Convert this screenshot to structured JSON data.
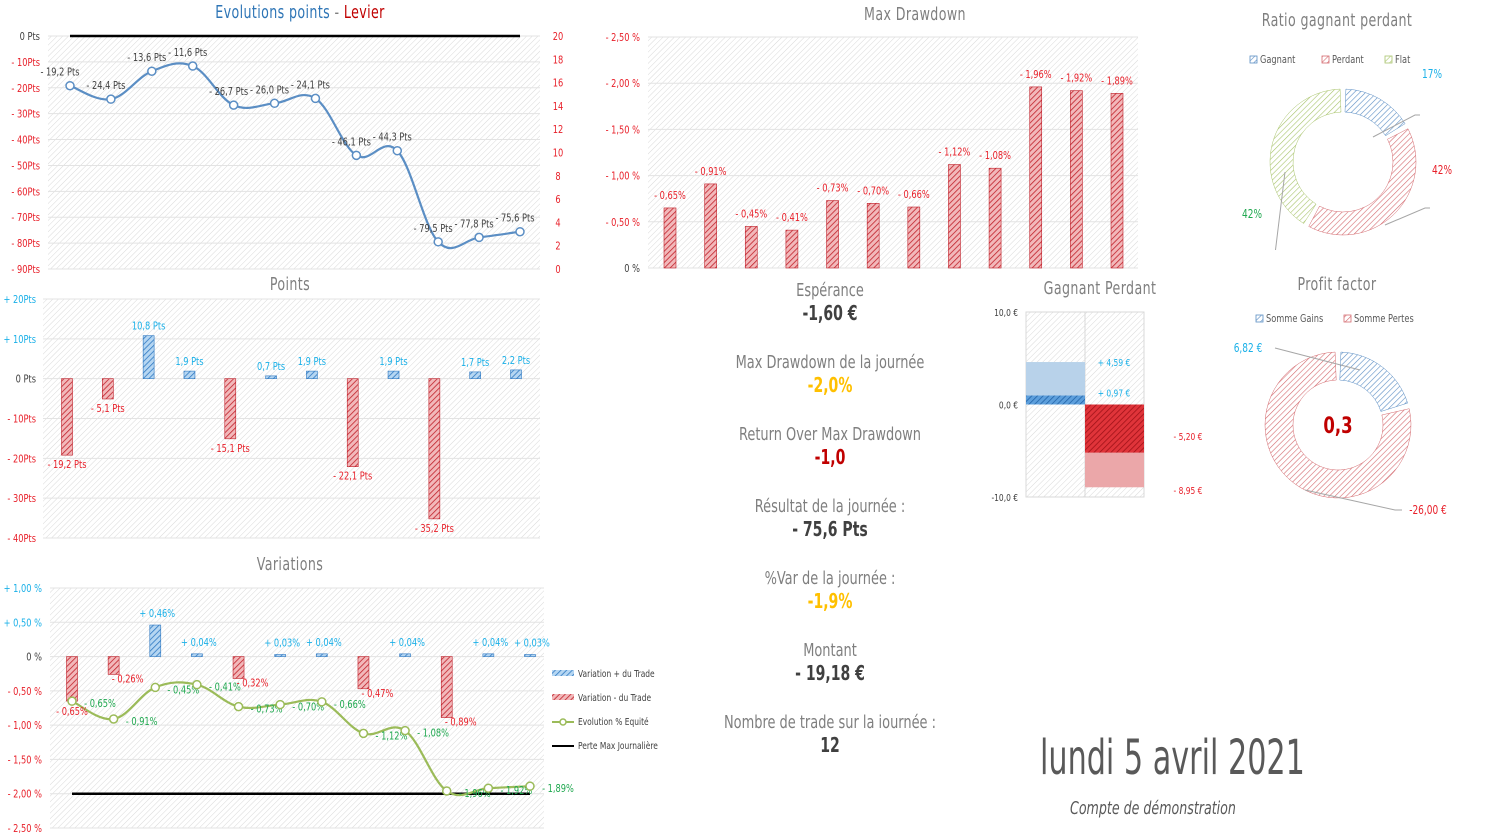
{
  "colors": {
    "blue": "#2e86c9",
    "blue_text": "#1ab0e8",
    "red": "#d9272e",
    "red_text": "#e8202a",
    "green_line": "#9bbb59",
    "green_text": "#1fa84f",
    "line_blue": "#5b8ec4",
    "grey_text": "#7f7f7f",
    "dark_text": "#404040",
    "yellow": "#ffc000",
    "dark_red": "#c00000"
  },
  "chart_data": [
    {
      "id": "evolution",
      "type": "line",
      "title_part1": "Evolutions points",
      "title_sep": " - ",
      "title_part2": "Levier",
      "ylim": [
        -90,
        0
      ],
      "y2lim": [
        0,
        20
      ],
      "yticks": [
        "0 Pts",
        "- 10Pts",
        "- 20Pts",
        "- 30Pts",
        "- 40Pts",
        "- 50Pts",
        "- 60Pts",
        "- 70Pts",
        "- 80Pts",
        "- 90Pts"
      ],
      "y2ticks": [
        "20",
        "18",
        "16",
        "14",
        "12",
        "10",
        "8",
        "6",
        "4",
        "2",
        "0"
      ],
      "values": [
        -19.2,
        -24.4,
        -13.6,
        -11.6,
        -26.7,
        -26.0,
        -24.1,
        -46.1,
        -44.3,
        -79.5,
        -77.8,
        -75.6
      ],
      "labels": [
        "- 19,2 Pts",
        "- 24,4 Pts",
        "- 13,6 Pts",
        "- 11,6 Pts",
        "- 26,7 Pts",
        "- 26,0 Pts",
        "- 24,1 Pts",
        "- 46,1 Pts",
        "- 44,3 Pts",
        "- 79,5 Pts",
        "- 77,8 Pts",
        "- 75,6 Pts"
      ],
      "reference_line": 0,
      "grid": true
    },
    {
      "id": "points",
      "type": "bar",
      "title": "Points",
      "ylim": [
        -40,
        20
      ],
      "yticks": [
        "+ 20Pts",
        "+ 10Pts",
        "0 Pts",
        "- 10Pts",
        "- 20Pts",
        "- 30Pts",
        "- 40Pts"
      ],
      "values": [
        -19.2,
        -5.1,
        10.8,
        1.9,
        -15.1,
        0.7,
        1.9,
        -22.1,
        1.9,
        -35.2,
        1.7,
        2.2
      ],
      "labels": [
        "- 19,2 Pts",
        "- 5,1 Pts",
        "10,8 Pts",
        "1,9 Pts",
        "- 15,1 Pts",
        "0,7 Pts",
        "1,9 Pts",
        "- 22,1 Pts",
        "1,9 Pts",
        "- 35,2 Pts",
        "1,7 Pts",
        "2,2 Pts"
      ],
      "grid": true
    },
    {
      "id": "variations",
      "type": "bar",
      "title": "Variations",
      "ylim": [
        -2.5,
        1.0
      ],
      "yticks": [
        "+ 1,00 %",
        "+ 0,50 %",
        "0 %",
        "- 0,50 %",
        "- 1,00 %",
        "- 1,50 %",
        "- 2,00 %",
        "- 2,50 %"
      ],
      "series": [
        {
          "name": "Variation + du Trade",
          "values": [
            null,
            null,
            0.46,
            0.04,
            null,
            0.03,
            0.04,
            null,
            0.04,
            null,
            0.04,
            0.03
          ],
          "labels": [
            "",
            "",
            "+ 0,46%",
            "+ 0,04%",
            "",
            "+ 0,03%",
            "+ 0,04%",
            "",
            "+ 0,04%",
            "",
            "+ 0,04%",
            "+ 0,03%"
          ]
        },
        {
          "name": "Variation - du Trade",
          "values": [
            -0.65,
            -0.26,
            null,
            null,
            -0.32,
            null,
            null,
            -0.47,
            null,
            -0.89,
            null,
            null
          ],
          "labels": [
            "- 0,65%",
            "- 0,26%",
            "",
            "",
            "- 0,32%",
            "",
            "",
            "- 0,47%",
            "",
            "- 0,89%",
            "",
            ""
          ]
        },
        {
          "name": "Evolution % Equité",
          "values": [
            -0.65,
            -0.91,
            -0.45,
            -0.41,
            -0.73,
            -0.7,
            -0.66,
            -1.12,
            -1.08,
            -1.96,
            -1.92,
            -1.89
          ],
          "labels": [
            "- 0,65%",
            "- 0,91%",
            "- 0,45%",
            "- 0,41%",
            "- 0,73%",
            "- 0,70%",
            "- 0,66%",
            "- 1,12%",
            "- 1,08%",
            "- 1,96%",
            "- 1,92%",
            "- 1,89%"
          ]
        },
        {
          "name": "Perte Max Journalière",
          "values": [
            -2.0,
            -2.0,
            -2.0,
            -2.0,
            -2.0,
            -2.0,
            -2.0,
            -2.0,
            -2.0,
            -2.0,
            -2.0,
            -2.0
          ]
        }
      ],
      "legend": "right",
      "grid": true
    },
    {
      "id": "max_drawdown",
      "type": "bar",
      "title": "Max Drawdown",
      "ylim": [
        0,
        -2.5
      ],
      "yticks": [
        "- 2,50 %",
        "- 2,00 %",
        "- 1,50 %",
        "- 1,00 %",
        "- 0,50 %",
        "0 %"
      ],
      "values": [
        -0.65,
        -0.91,
        -0.45,
        -0.41,
        -0.73,
        -0.7,
        -0.66,
        -1.12,
        -1.08,
        -1.96,
        -1.92,
        -1.89
      ],
      "labels": [
        "- 0,65%",
        "- 0,91%",
        "- 0,45%",
        "- 0,41%",
        "- 0,73%",
        "- 0,70%",
        "- 0,66%",
        "- 1,12%",
        "- 1,08%",
        "- 1,96%",
        "- 1,92%",
        "- 1,89%"
      ],
      "grid": true
    },
    {
      "id": "ratio",
      "type": "pie",
      "title": "Ratio gagnant perdant",
      "categories": [
        "Gagnant",
        "Perdant",
        "Flat"
      ],
      "values": [
        17,
        42,
        42
      ],
      "labels": [
        "17%",
        "42%",
        "42%"
      ],
      "legend": "top"
    },
    {
      "id": "gagnant_perdant",
      "type": "bar",
      "title": "Gagnant Perdant",
      "ylim": [
        -10,
        10
      ],
      "yticks": [
        "10,0 €",
        "0,0 €",
        "-10,0 €"
      ],
      "gagnant": {
        "max": 4.59,
        "avg": 0.97,
        "labels": [
          "+ 4,59 €",
          "+ 0,97 €"
        ]
      },
      "perdant": {
        "avg": -5.2,
        "max": -8.95,
        "labels": [
          "- 5,20 €",
          "- 8,95 €"
        ]
      }
    },
    {
      "id": "profit_factor",
      "type": "pie",
      "title": "Profit factor",
      "categories": [
        "Somme Gains",
        "Somme Pertes"
      ],
      "values": [
        6.82,
        26.0
      ],
      "labels": [
        "6,82 €",
        "-26,00 €"
      ],
      "center_value": "0,3",
      "legend": "top"
    }
  ],
  "kpis": [
    {
      "label": "Espérance",
      "value": "-1,60 €",
      "color": "#404040"
    },
    {
      "label": "Max Drawdown de la journée",
      "value": "-2,0%",
      "color": "#ffc000"
    },
    {
      "label": "Return Over Max Drawdown",
      "value": "-1,0",
      "color": "#c00000"
    },
    {
      "label": "Résultat de la journée :",
      "value": "- 75,6 Pts",
      "color": "#404040"
    },
    {
      "label": "%Var de la journée :",
      "value": "-1,9%",
      "color": "#ffc000"
    },
    {
      "label": "Montant",
      "value": "- 19,18 €",
      "color": "#404040"
    },
    {
      "label": "Nombre de trade sur la iournée :",
      "value": "12",
      "color": "#404040"
    }
  ],
  "footer": {
    "date": "lundi 5 avril 2021",
    "account": "Compte de démonstration"
  }
}
